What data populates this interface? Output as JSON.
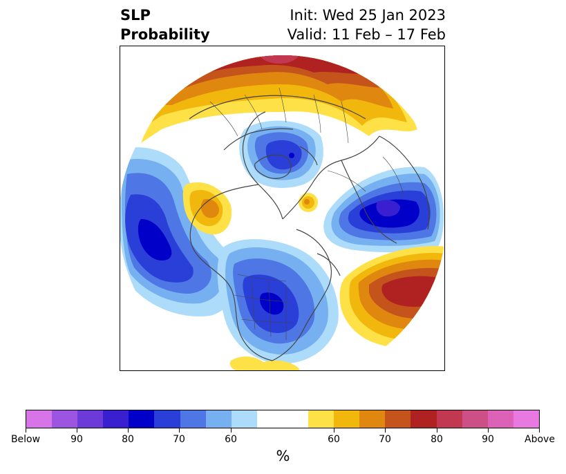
{
  "title": {
    "left_line1": "SLP",
    "left_line2": "Probability",
    "right_line1": "Init: Wed 25 Jan 2023",
    "right_line2": "Valid: 11 Feb – 17 Feb"
  },
  "colorbar": {
    "unit": "%",
    "tick_labels": [
      "Below",
      "90",
      "80",
      "70",
      "60",
      "60",
      "70",
      "80",
      "90",
      "Above"
    ],
    "below_colors": [
      "#d674e8",
      "#9b55e0",
      "#6b3ad8",
      "#3a1fd0",
      "#0000c8",
      "#2a3fd8",
      "#4e76e4",
      "#76b0f0",
      "#acdcfa"
    ],
    "neutral_color": "#ffffff",
    "above_colors": [
      "#fde146",
      "#f2b70c",
      "#df870f",
      "#c4531c",
      "#b02222",
      "#c23850",
      "#cc4f86",
      "#dc62b8",
      "#e779e0"
    ]
  },
  "map": {
    "projection": "north-polar-stereographic",
    "background": "#ffffff",
    "coastline_color": "#444444"
  }
}
